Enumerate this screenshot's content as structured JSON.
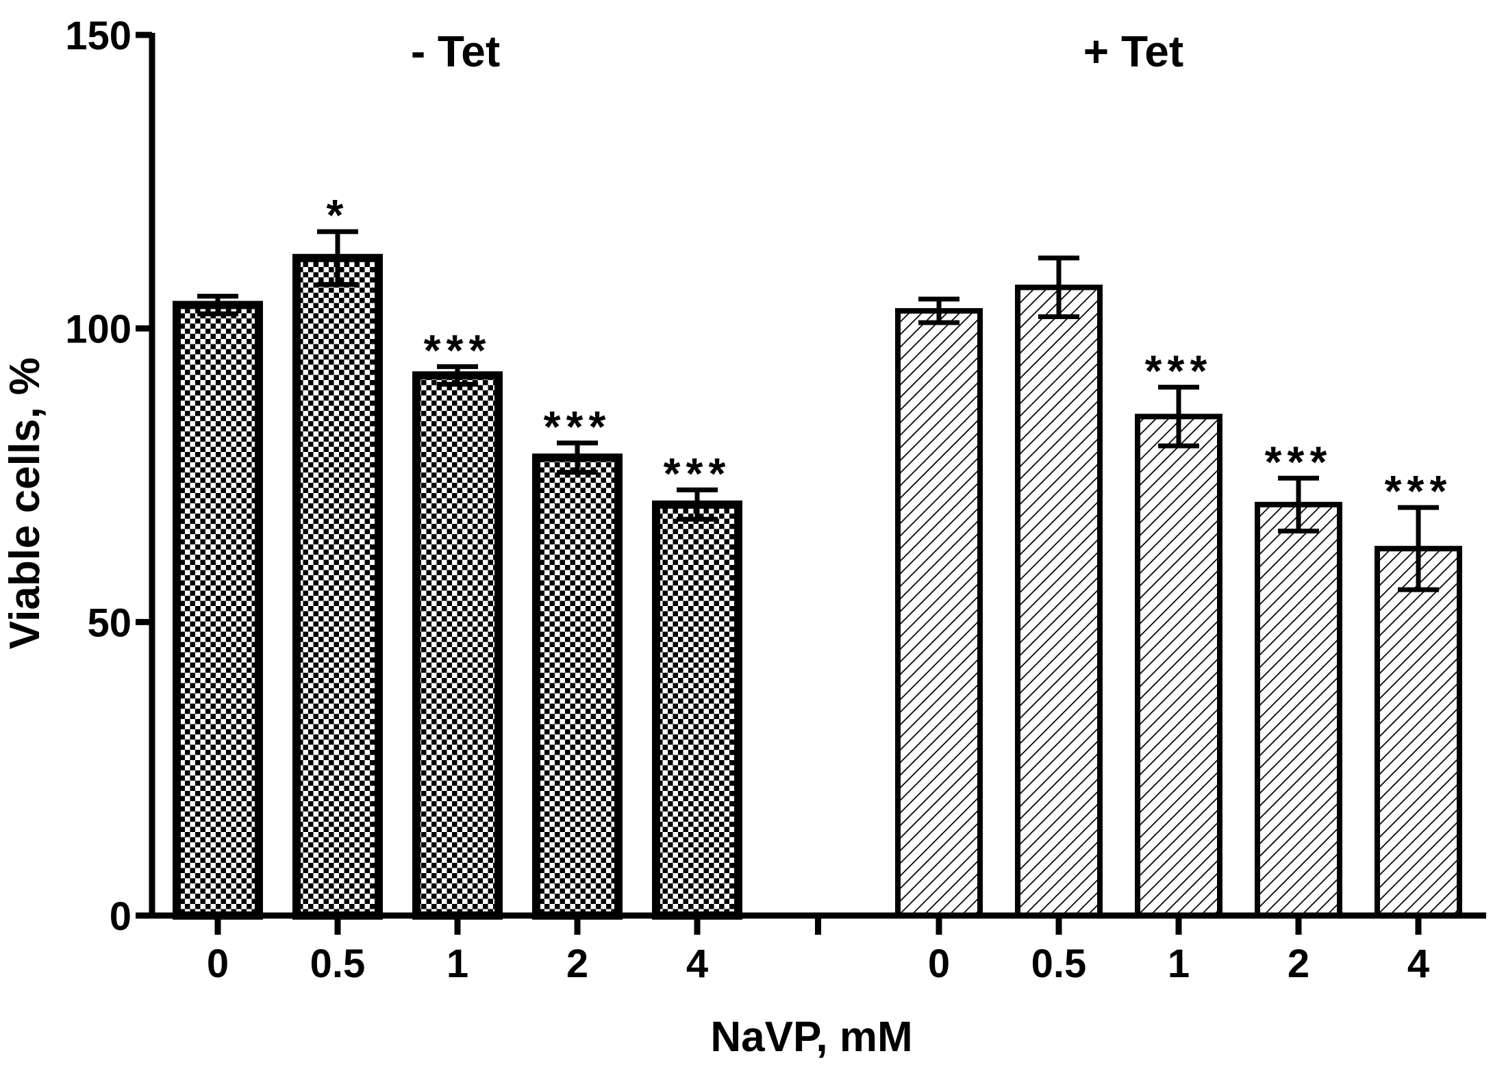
{
  "chart_data": {
    "type": "bar",
    "xlabel": "NaVP, mM",
    "ylabel": "Viable cells, %",
    "ylim": [
      0,
      150
    ],
    "yticks": [
      0,
      50,
      100,
      150
    ],
    "grid": false,
    "groups": [
      {
        "name": "- Tet",
        "pattern": "checker",
        "categories": [
          "0",
          "0.5",
          "1",
          "2",
          "4"
        ],
        "values": [
          104,
          112,
          92,
          78,
          70
        ],
        "errors": [
          1.5,
          4.5,
          1.5,
          2.5,
          2.5
        ],
        "significance": [
          "",
          "*",
          "***",
          "***",
          "***"
        ]
      },
      {
        "name": "+ Tet",
        "pattern": "hatch",
        "categories": [
          "0",
          "0.5",
          "1",
          "2",
          "4"
        ],
        "values": [
          103,
          107,
          85,
          70,
          62.5
        ],
        "errors": [
          2,
          5,
          5,
          4.5,
          7
        ],
        "significance": [
          "",
          "",
          "***",
          "***",
          "***"
        ]
      }
    ]
  },
  "colors": {
    "bar_stroke": "#000000",
    "background": "#ffffff"
  }
}
